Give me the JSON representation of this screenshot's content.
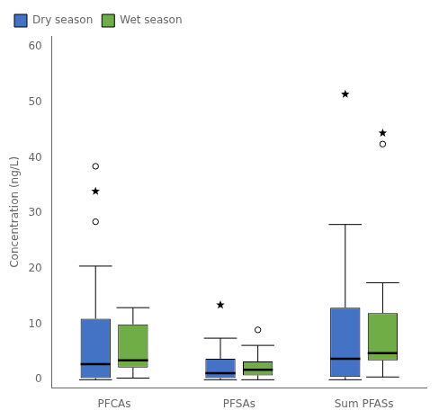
{
  "chart_data": {
    "type": "box",
    "categories": [
      "PFCAs",
      "PFSAs",
      "Sum PFASs"
    ],
    "ylabel": "Concentration (ng/L)",
    "ylim": [
      -1.5,
      62
    ],
    "yticks": [
      0,
      10,
      20,
      30,
      40,
      50,
      60
    ],
    "grid": false,
    "legend": "upper left",
    "series": [
      {
        "name": "Dry season",
        "color": "#4472C4",
        "boxes": [
          {
            "q1": 0.3,
            "median": 2.8,
            "q3": 11.0,
            "whislo": 0.0,
            "whishi": 20.5
          },
          {
            "q1": 0.3,
            "median": 1.2,
            "q3": 3.8,
            "whislo": 0.0,
            "whishi": 7.5
          },
          {
            "q1": 0.5,
            "median": 3.8,
            "q3": 13.0,
            "whislo": 0.0,
            "whishi": 28.0
          }
        ],
        "outliers": [
          [
            28.5,
            38.5
          ],
          [],
          []
        ],
        "extremes": [
          [
            34.0
          ],
          [
            13.5
          ],
          [
            51.5
          ]
        ]
      },
      {
        "name": "Wet season",
        "color": "#70AD47",
        "boxes": [
          {
            "q1": 2.2,
            "median": 3.5,
            "q3": 10.0,
            "whislo": 0.3,
            "whishi": 13.0
          },
          {
            "q1": 0.8,
            "median": 1.8,
            "q3": 3.3,
            "whislo": 0.0,
            "whishi": 6.2
          },
          {
            "q1": 3.5,
            "median": 4.8,
            "q3": 12.0,
            "whislo": 0.5,
            "whishi": 17.5
          }
        ],
        "outliers": [
          [],
          [
            9.0
          ],
          [
            42.5
          ]
        ],
        "extremes": [
          [],
          [],
          [
            44.5
          ]
        ]
      }
    ]
  }
}
